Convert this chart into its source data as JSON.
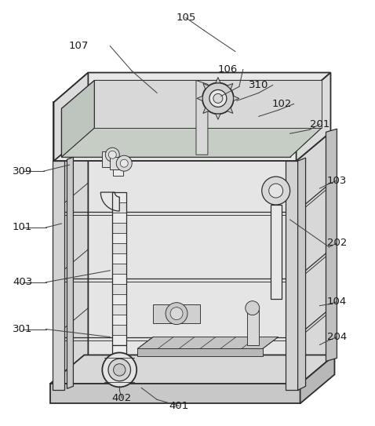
{
  "bg": "#ffffff",
  "lc": "#2d2d2d",
  "figsize": [
    4.78,
    5.43
  ],
  "dpi": 100,
  "label_font": 9.5,
  "label_color": "#1a1a1a"
}
